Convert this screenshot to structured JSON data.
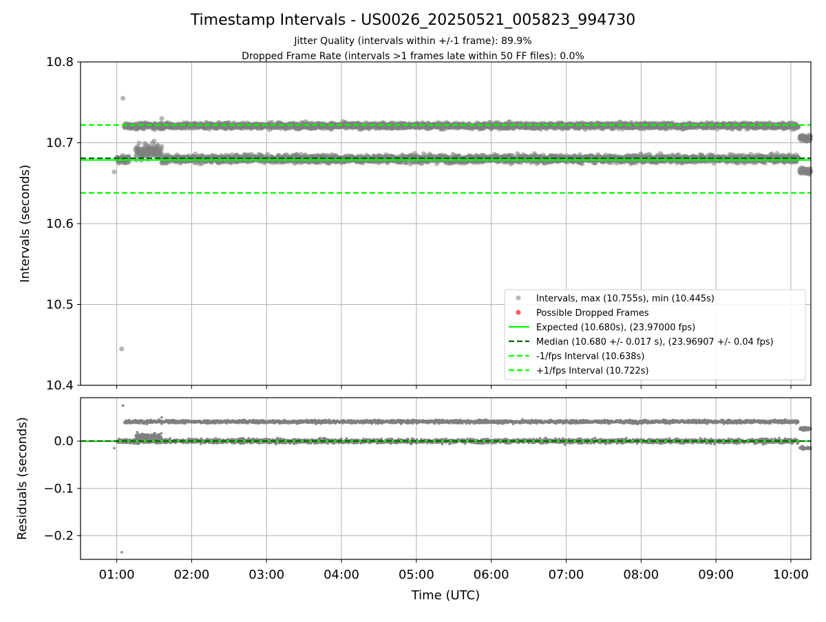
{
  "chart_data": [
    {
      "type": "scatter",
      "title": "Timestamp Intervals - US0026_20250521_005823_994730",
      "subtitle_lines": [
        "Jitter Quality (intervals within +/-1 frame): 89.9%",
        "Dropped Frame Rate (intervals >1 frames late within 50 FF files): 0.0%"
      ],
      "ylabel": "Intervals (seconds)",
      "ylim": [
        10.4,
        10.8
      ],
      "yticks": [
        "10.8",
        "10.7",
        "10.6",
        "10.5",
        "10.4"
      ],
      "ytick_values": [
        10.8,
        10.7,
        10.6,
        10.5,
        10.4
      ],
      "grid": true,
      "legend_position": "lower-right",
      "colors": {
        "intervals": "#808080",
        "dropped": "#ff4040",
        "expected": "#00ff00",
        "median": "#006400",
        "bands": "#00ff00"
      },
      "legend": [
        {
          "label": "Intervals, max (10.755s), min (10.445s)",
          "kind": "dot-gray"
        },
        {
          "label": "Possible Dropped Frames",
          "kind": "dot-red"
        },
        {
          "label": "Expected (10.680s), (23.97000 fps)",
          "kind": "line-solid-lime"
        },
        {
          "label": "Median (10.680 +/- 0.017 s), (23.96907 +/- 0.04 fps)",
          "kind": "line-dash-darkgreen"
        },
        {
          "label": "-1/fps Interval (10.638s)",
          "kind": "line-dash-lime"
        },
        {
          "label": "+1/fps Interval (10.722s)",
          "kind": "line-dash-lime"
        }
      ],
      "reference_lines": {
        "expected": 10.68,
        "median": 10.68,
        "minus_one_frame": 10.638,
        "plus_one_frame": 10.722
      },
      "series": [
        {
          "name": "Intervals",
          "bands": [
            {
              "x_start": "01:00",
              "x_end": "01:10",
              "y_center": 10.679,
              "y_spread": 0.004
            },
            {
              "x_start": "01:15",
              "x_end": "01:36",
              "y_center": 10.689,
              "y_spread": 0.008
            },
            {
              "x_start": "01:36",
              "x_end": "10:06",
              "y_center": 10.68,
              "y_spread": 0.004
            },
            {
              "x_start": "01:06",
              "x_end": "10:06",
              "y_center": 10.721,
              "y_spread": 0.003
            },
            {
              "x_start": "10:07",
              "x_end": "10:20",
              "y_center": 10.665,
              "y_spread": 0.003
            },
            {
              "x_start": "10:07",
              "x_end": "10:20",
              "y_center": 10.706,
              "y_spread": 0.003
            }
          ],
          "outliers": [
            {
              "x": "01:05",
              "y": 10.755
            },
            {
              "x": "01:04",
              "y": 10.445
            },
            {
              "x": "00:58",
              "y": 10.664
            },
            {
              "x": "01:36",
              "y": 10.73
            },
            {
              "x": "01:30",
              "y": 10.702
            }
          ]
        }
      ]
    },
    {
      "type": "scatter",
      "xlabel": "Time (UTC)",
      "ylabel": "Residuals (seconds)",
      "ylim": [
        -0.25,
        0.0917
      ],
      "yticks": [
        "0.0",
        "−0.1",
        "−0.2"
      ],
      "ytick_values": [
        0.0,
        -0.1,
        -0.2
      ],
      "xlim": [
        "00:31",
        "10:16"
      ],
      "xticks": [
        "01:00",
        "02:00",
        "03:00",
        "04:00",
        "05:00",
        "06:00",
        "07:00",
        "08:00",
        "09:00",
        "10:00"
      ],
      "grid": true,
      "series": [
        {
          "name": "Residuals",
          "bands": [
            {
              "x_start": "01:06",
              "x_end": "10:06",
              "y_center": 0.041,
              "y_spread": 0.003
            },
            {
              "x_start": "01:00",
              "x_end": "10:06",
              "y_center": 0.0,
              "y_spread": 0.004
            },
            {
              "x_start": "01:15",
              "x_end": "01:36",
              "y_center": 0.009,
              "y_spread": 0.006
            },
            {
              "x_start": "10:07",
              "x_end": "10:20",
              "y_center": -0.015,
              "y_spread": 0.003
            },
            {
              "x_start": "10:07",
              "x_end": "10:20",
              "y_center": 0.026,
              "y_spread": 0.003
            }
          ],
          "outliers": [
            {
              "x": "01:05",
              "y": 0.075
            },
            {
              "x": "01:04",
              "y": -0.235
            },
            {
              "x": "00:58",
              "y": -0.015
            },
            {
              "x": "01:36",
              "y": 0.05
            }
          ]
        }
      ]
    }
  ]
}
